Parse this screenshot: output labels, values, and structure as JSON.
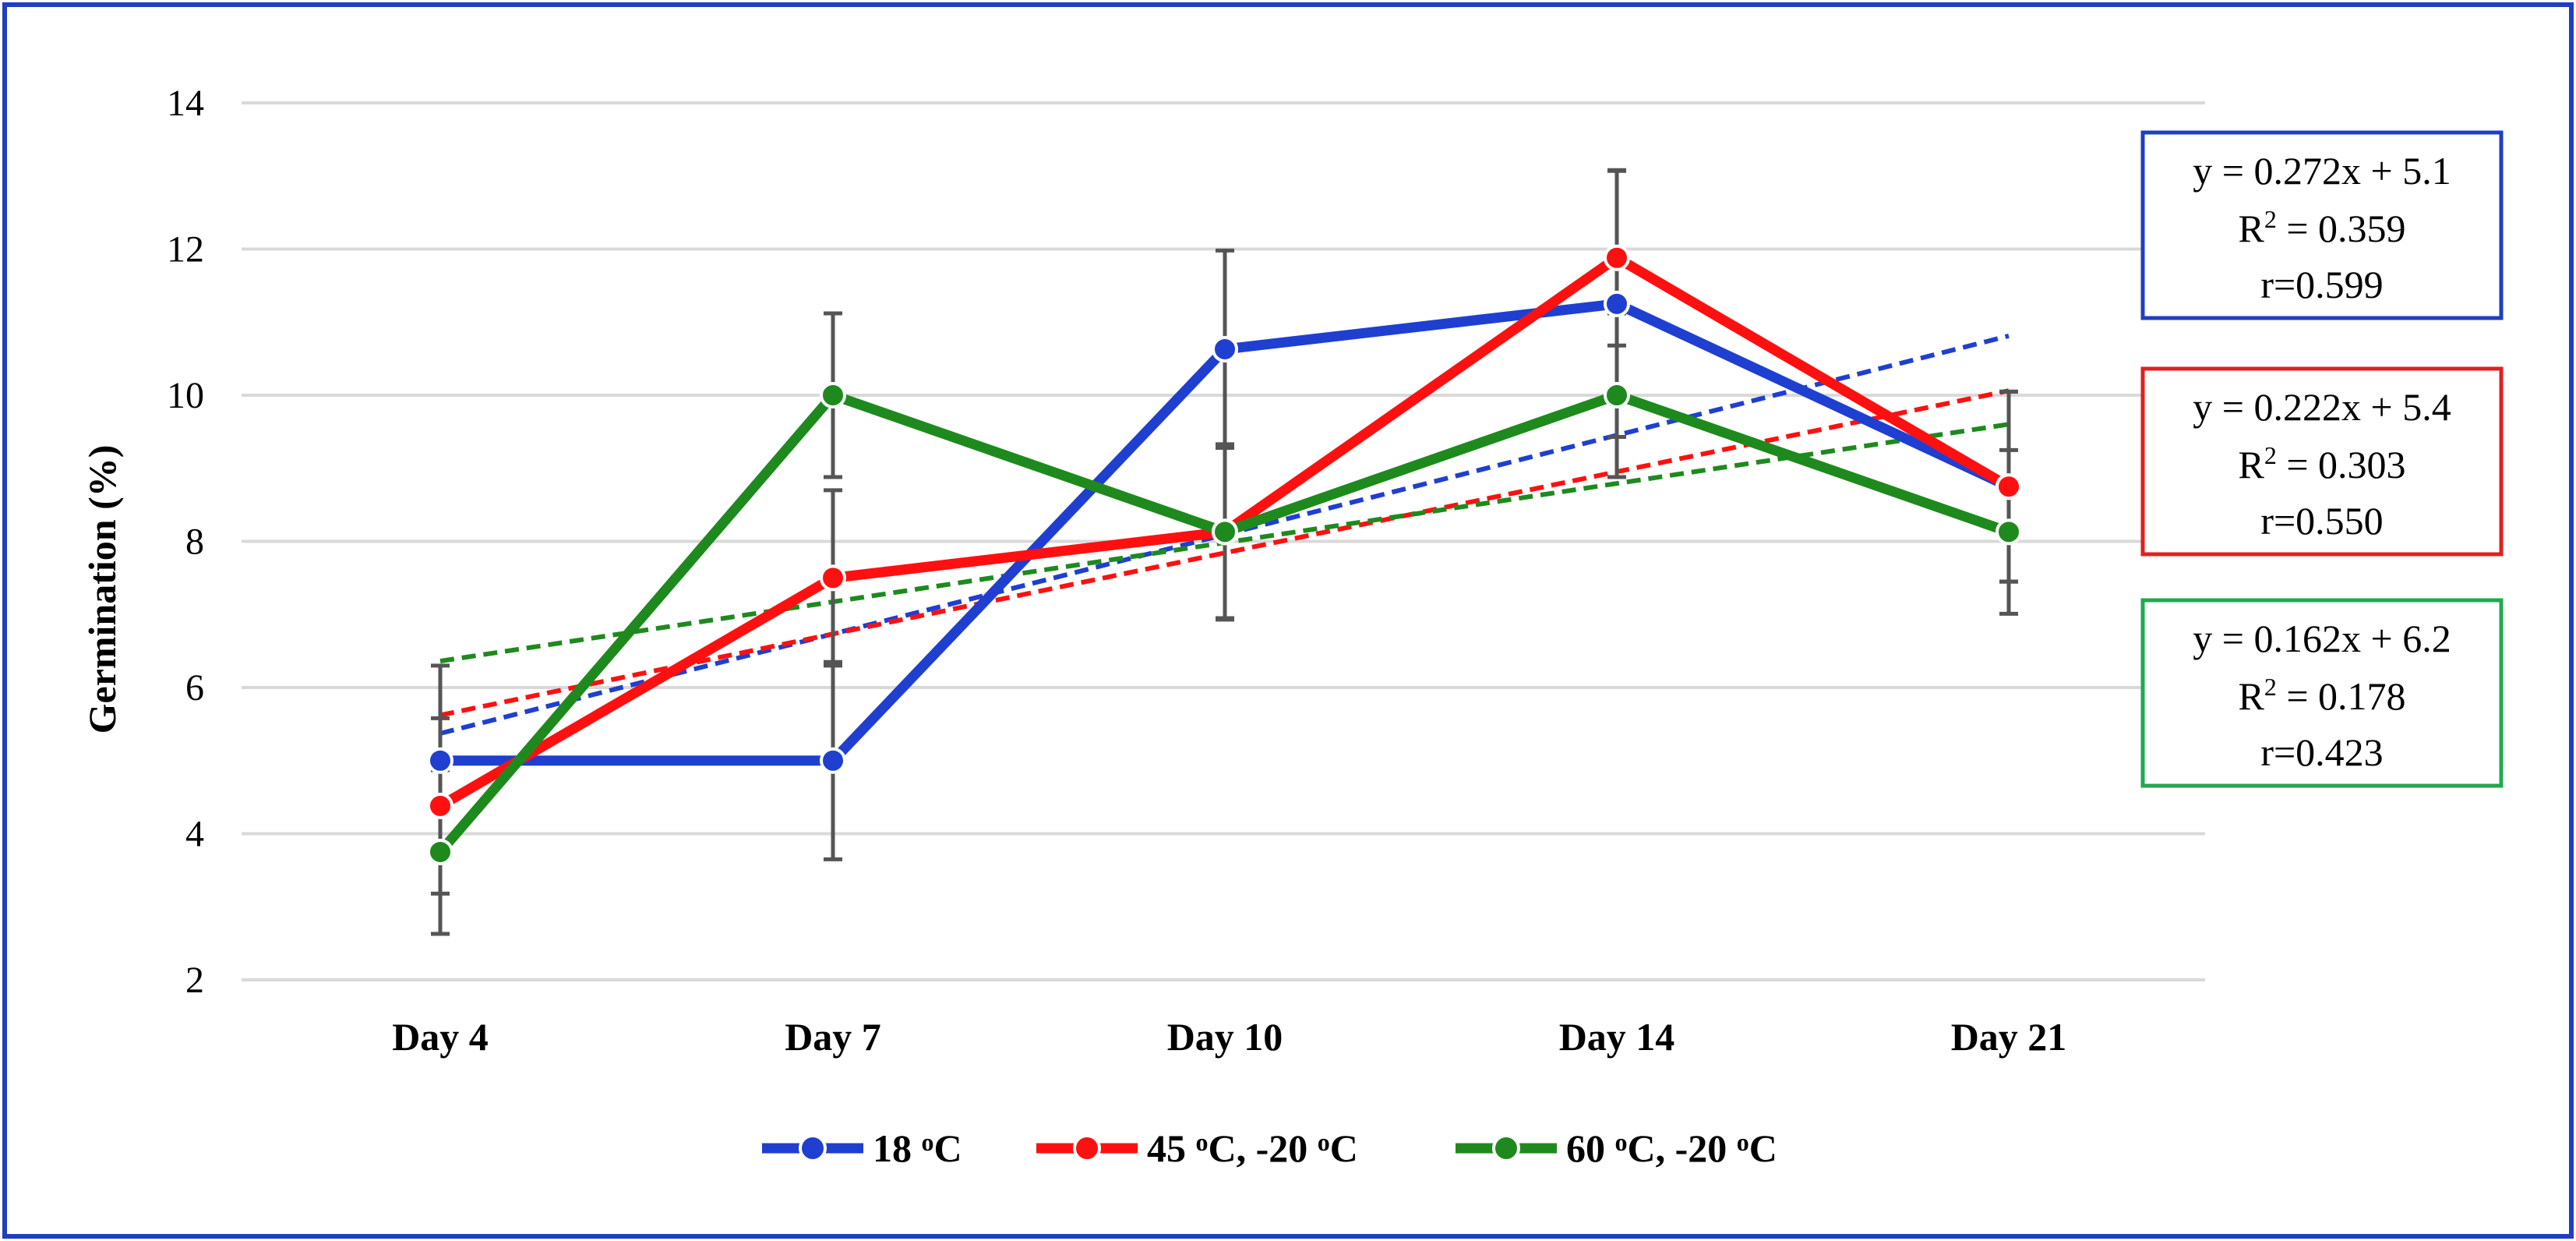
{
  "chart_data": {
    "type": "line",
    "title": "",
    "xlabel": "",
    "ylabel": "Germination (%)",
    "ylim": [
      2,
      14
    ],
    "yticks": [
      2,
      4,
      6,
      8,
      10,
      12,
      14
    ],
    "grid": true,
    "legend_position": "bottom-center",
    "categories": [
      "Day 4",
      "Day 7",
      "Day 10",
      "Day 14",
      "Day 21"
    ],
    "series": [
      {
        "name": "18",
        "unit": "oC",
        "color": "#1f3fd1",
        "values": [
          5.0,
          5.0,
          10.63,
          11.25,
          8.75
        ],
        "errors": [
          1.3,
          1.35,
          1.35,
          1.82,
          1.3
        ],
        "trend": {
          "slope": 0.272,
          "intercept": 5.1
        },
        "equation": "y = 0.272x + 5.1",
        "r2_label": "R",
        "r2_value": "= 0.359",
        "r_text": "r=0.599"
      },
      {
        "name": "45",
        "unit": "oC, -20",
        "unit2": "oC",
        "color": "#ff1010",
        "values": [
          4.38,
          7.5,
          8.13,
          11.88,
          8.75
        ],
        "errors": [
          1.2,
          1.2,
          1.2,
          1.2,
          1.3
        ],
        "trend": {
          "slope": 0.222,
          "intercept": 5.4
        },
        "equation": "y = 0.222x + 5.4",
        "r2_label": "R",
        "r2_value": "= 0.303",
        "r_text": "r=0.550"
      },
      {
        "name": "60",
        "unit": "oC, -20",
        "unit2": "oC",
        "color": "#1e8a1e",
        "values": [
          3.75,
          10.0,
          8.13,
          10.0,
          8.13
        ],
        "errors": [
          1.12,
          1.12,
          1.18,
          1.12,
          1.12
        ],
        "trend": {
          "slope": 0.162,
          "intercept": 6.2
        },
        "equation": "y = 0.162x + 6.2",
        "r2_label": "R",
        "r2_value": "= 0.178",
        "r_text": "r=0.423"
      }
    ]
  },
  "colors": {
    "frame": "#1f3fbf",
    "grid": "#d9d9d9",
    "error_bar": "#555555",
    "eq_box_red": "#e02020",
    "eq_box_green": "#22a850"
  }
}
